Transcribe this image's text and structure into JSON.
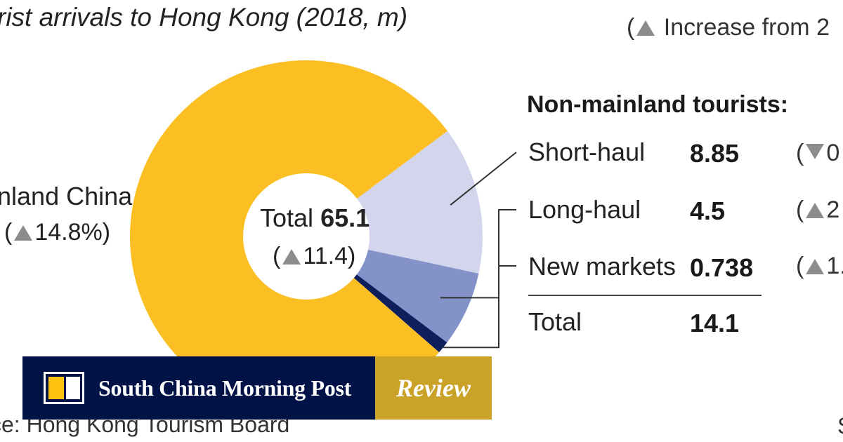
{
  "title": "rist arrivals to Hong Kong (2018, m)",
  "legend_note": "Increase from 2",
  "colors": {
    "mainland": "#fbbf24",
    "short_haul": "#d3d5ec",
    "long_haul": "#8393c9",
    "new_markets": "#0e1f5c",
    "brand_navy": "#001246",
    "brand_gold": "#c9a227"
  },
  "chart_data": {
    "type": "pie",
    "total_label": "Total",
    "total_value": "65.1",
    "total_change": "11.4",
    "slices": [
      {
        "name": "nland China",
        "value": 51.0,
        "change": "14.8%"
      },
      {
        "name": "Short-haul",
        "value": 8.85
      },
      {
        "name": "Long-haul",
        "value": 4.5
      },
      {
        "name": "New markets",
        "value": 0.738
      }
    ]
  },
  "non_mainland": {
    "heading": "Non-mainland tourists:",
    "rows": [
      {
        "name": "Short-haul",
        "value": "8.85",
        "direction": "down",
        "change": "0"
      },
      {
        "name": "Long-haul",
        "value": "4.5",
        "direction": "up",
        "change": "2"
      },
      {
        "name": "New markets",
        "value": "0.738",
        "direction": "up",
        "change": "1."
      }
    ],
    "total_label": "Total",
    "total_value": "14.1"
  },
  "source": "ce: Hong Kong Tourism Board",
  "right_fragment": "S",
  "brand": {
    "name": "South China Morning Post",
    "section": "Review"
  }
}
